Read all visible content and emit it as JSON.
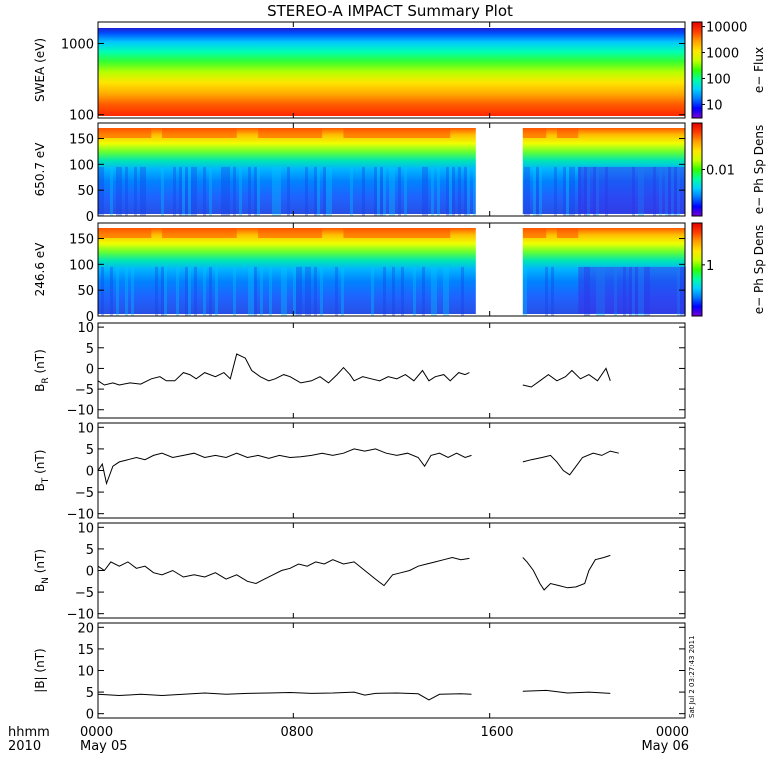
{
  "title": "STEREO-A IMPACT Summary Plot",
  "stamp": "Sat Jul  2 03:27:43 2011",
  "time_axis": {
    "corner_top": "hhmm",
    "corner_bottom": "2010",
    "ticks": [
      {
        "label": "0000",
        "sub": "May 05",
        "hour": 0
      },
      {
        "label": "0800",
        "sub": "",
        "hour": 8
      },
      {
        "label": "1600",
        "sub": "",
        "hour": 16
      },
      {
        "label": "0000",
        "sub": "May 06",
        "hour": 24
      }
    ]
  },
  "colorbar_colors": [
    "#7a00d4",
    "#0000ff",
    "#0078ff",
    "#00d2ff",
    "#00ffa0",
    "#32ff00",
    "#c8ff00",
    "#ffe600",
    "#ffa000",
    "#ff3c00",
    "#e60000"
  ],
  "chart_data": [
    {
      "type": "heatmap",
      "ylabel": "SWEA (eV)",
      "yscale": "log",
      "ylim": [
        90,
        2000
      ],
      "yticks": [
        {
          "label": "1000",
          "v": 1000
        },
        {
          "label": "100",
          "v": 100
        }
      ],
      "colorbar_label": "e− Flux",
      "colorbar_scale": "log",
      "colorbar_ticks": [
        {
          "label": "10000",
          "v": 10000
        },
        {
          "label": "1000",
          "v": 1000
        },
        {
          "label": "100",
          "v": 100
        },
        {
          "label": "10",
          "v": 10
        }
      ],
      "colorbar_range": [
        3,
        15000
      ],
      "gap_hours": [],
      "bands_log_energy": [
        3.3,
        3.05,
        2.75,
        2.45,
        2.15,
        1.95
      ]
    },
    {
      "type": "heatmap",
      "ylabel": "650.7 eV",
      "ylim": [
        0,
        180
      ],
      "yticks": [
        {
          "label": "150",
          "v": 150
        },
        {
          "label": "100",
          "v": 100
        },
        {
          "label": "50",
          "v": 50
        },
        {
          "label": "0",
          "v": 0
        }
      ],
      "colorbar_label": "e− Ph Sp Dens",
      "colorbar_ticks": [
        {
          "label": "0.01",
          "v": 0.5
        }
      ],
      "gap_hours": [
        17.7,
        19.9
      ]
    },
    {
      "type": "heatmap",
      "ylabel": "246.6 eV",
      "ylim": [
        0,
        180
      ],
      "yticks": [
        {
          "label": "150",
          "v": 150
        },
        {
          "label": "100",
          "v": 100
        },
        {
          "label": "50",
          "v": 50
        },
        {
          "label": "0",
          "v": 0
        }
      ],
      "colorbar_label": "e− Ph Sp Dens",
      "colorbar_ticks": [
        {
          "label": "1",
          "v": 0.55
        }
      ],
      "gap_hours": [
        17.7,
        19.9
      ]
    },
    {
      "type": "line",
      "ylabel": "B",
      "ylabel_sub": "R",
      "ylabel_unit": " (nT)",
      "ylim": [
        -12,
        11
      ],
      "yticks": [
        {
          "label": "10",
          "v": 10
        },
        {
          "label": "5",
          "v": 5
        },
        {
          "label": "0",
          "v": 0
        },
        {
          "label": "−5",
          "v": -5
        },
        {
          "label": "−10",
          "v": -10
        }
      ],
      "segments": [
        [
          [
            0,
            -3
          ],
          [
            0.3,
            -4
          ],
          [
            0.7,
            -3.5
          ],
          [
            1.0,
            -4
          ],
          [
            1.5,
            -3.5
          ],
          [
            2.0,
            -3.8
          ],
          [
            2.5,
            -2.5
          ],
          [
            2.9,
            -2
          ],
          [
            3.2,
            -3
          ],
          [
            3.6,
            -3
          ],
          [
            4.0,
            -1
          ],
          [
            4.3,
            -1.5
          ],
          [
            4.6,
            -2.5
          ],
          [
            5.0,
            -1
          ],
          [
            5.5,
            -2
          ],
          [
            5.9,
            -1
          ],
          [
            6.2,
            -2.5
          ],
          [
            6.5,
            3.5
          ],
          [
            6.9,
            2.5
          ],
          [
            7.2,
            -0.5
          ],
          [
            7.6,
            -2
          ],
          [
            8.0,
            -3
          ],
          [
            8.3,
            -2.5
          ],
          [
            8.7,
            -1.5
          ],
          [
            9.0,
            -2
          ],
          [
            9.5,
            -3.5
          ],
          [
            10.0,
            -3
          ],
          [
            10.4,
            -2
          ],
          [
            10.8,
            -3.5
          ],
          [
            11.2,
            -1.5
          ],
          [
            11.5,
            0.2
          ],
          [
            11.8,
            -1.5
          ],
          [
            12.0,
            -3
          ],
          [
            12.4,
            -2
          ],
          [
            12.8,
            -2.5
          ],
          [
            13.2,
            -3
          ],
          [
            13.6,
            -2
          ],
          [
            14.0,
            -2.5
          ],
          [
            14.4,
            -1.5
          ],
          [
            14.8,
            -3
          ],
          [
            15.2,
            -0.5
          ],
          [
            15.5,
            -3
          ],
          [
            15.8,
            -2
          ],
          [
            16.2,
            -1.5
          ],
          [
            16.5,
            -3
          ],
          [
            16.9,
            -1
          ],
          [
            17.2,
            -1.5
          ],
          [
            17.4,
            -1
          ]
        ],
        [
          [
            19.9,
            -4
          ],
          [
            20.3,
            -4.5
          ],
          [
            20.7,
            -3
          ],
          [
            21.1,
            -1.5
          ],
          [
            21.5,
            -3
          ],
          [
            21.9,
            -2
          ],
          [
            22.2,
            -0.5
          ],
          [
            22.6,
            -2.5
          ],
          [
            23.0,
            -1.5
          ],
          [
            23.4,
            -3
          ],
          [
            23.8,
            0
          ],
          [
            24.0,
            -3
          ]
        ],
        [
          [
            19.9,
            -4
          ],
          [
            20.3,
            -4.5
          ],
          [
            20.7,
            -3
          ],
          [
            21.1,
            -1.5
          ],
          [
            21.5,
            -2
          ],
          [
            21.9,
            -2.5
          ],
          [
            22.4,
            0.5
          ],
          [
            22.8,
            0
          ],
          [
            23.2,
            -0.5
          ],
          [
            23.5,
            -0.8
          ],
          [
            23.8,
            0.3
          ],
          [
            24.2,
            -1.5
          ],
          [
            24.6,
            0
          ],
          [
            25.0,
            0.8
          ],
          [
            25.3,
            -1
          ],
          [
            25.6,
            0.3
          ],
          [
            26.0,
            -1
          ],
          [
            26.4,
            -1.2
          ],
          [
            26.7,
            -2
          ],
          [
            27.0,
            -3
          ]
        ]
      ]
    },
    {
      "type": "line",
      "ylabel": "B",
      "ylabel_sub": "T",
      "ylabel_unit": " (nT)",
      "ylim": [
        -11,
        11
      ],
      "yticks": [
        {
          "label": "10",
          "v": 10
        },
        {
          "label": "5",
          "v": 5
        },
        {
          "label": "0",
          "v": 0
        },
        {
          "label": "−5",
          "v": -5
        },
        {
          "label": "−10",
          "v": -10
        }
      ],
      "segments": [
        [
          [
            0,
            0
          ],
          [
            0.2,
            1.5
          ],
          [
            0.4,
            -3
          ],
          [
            0.7,
            1
          ],
          [
            1.0,
            2
          ],
          [
            1.4,
            2.5
          ],
          [
            1.8,
            3
          ],
          [
            2.2,
            2.5
          ],
          [
            2.6,
            3.5
          ],
          [
            3.0,
            4
          ],
          [
            3.5,
            3
          ],
          [
            4.0,
            3.5
          ],
          [
            4.5,
            4
          ],
          [
            5.0,
            3
          ],
          [
            5.5,
            3.5
          ],
          [
            6.0,
            3
          ],
          [
            6.5,
            4
          ],
          [
            7.0,
            3
          ],
          [
            7.5,
            3.5
          ],
          [
            8.0,
            2.8
          ],
          [
            8.5,
            3.5
          ],
          [
            9.0,
            3
          ],
          [
            9.5,
            3.2
          ],
          [
            10.0,
            3.5
          ],
          [
            10.5,
            4
          ],
          [
            11.0,
            3.5
          ],
          [
            11.5,
            4
          ],
          [
            12.0,
            5
          ],
          [
            12.5,
            4.5
          ],
          [
            13.0,
            5
          ],
          [
            13.5,
            4
          ],
          [
            14.0,
            3.5
          ],
          [
            14.5,
            4
          ],
          [
            15.0,
            3
          ],
          [
            15.3,
            1
          ],
          [
            15.6,
            3.5
          ],
          [
            16.0,
            4
          ],
          [
            16.4,
            3
          ],
          [
            16.8,
            4
          ],
          [
            17.2,
            3
          ],
          [
            17.5,
            3.5
          ]
        ],
        [
          [
            19.9,
            2
          ],
          [
            20.3,
            2.5
          ],
          [
            20.8,
            3
          ],
          [
            21.2,
            3.5
          ],
          [
            21.5,
            2
          ],
          [
            21.8,
            0
          ],
          [
            22.1,
            -1
          ],
          [
            22.4,
            1
          ],
          [
            22.7,
            3
          ],
          [
            23.2,
            4
          ],
          [
            23.6,
            3.5
          ],
          [
            24.0,
            4.5
          ],
          [
            24.4,
            4
          ]
        ]
      ]
    },
    {
      "type": "line",
      "ylabel": "B",
      "ylabel_sub": "N",
      "ylabel_unit": " (nT)",
      "ylim": [
        -11,
        11
      ],
      "yticks": [
        {
          "label": "10",
          "v": 10
        },
        {
          "label": "5",
          "v": 5
        },
        {
          "label": "0",
          "v": 0
        },
        {
          "label": "−5",
          "v": -5
        },
        {
          "label": "−10",
          "v": -10
        }
      ],
      "segments": [
        [
          [
            0,
            1
          ],
          [
            0.3,
            0
          ],
          [
            0.6,
            2
          ],
          [
            1.0,
            1
          ],
          [
            1.4,
            2
          ],
          [
            1.8,
            0.5
          ],
          [
            2.2,
            1
          ],
          [
            2.6,
            -0.5
          ],
          [
            3.0,
            -1
          ],
          [
            3.5,
            0
          ],
          [
            4.0,
            -1.5
          ],
          [
            4.5,
            -1
          ],
          [
            5.0,
            -1.5
          ],
          [
            5.5,
            -0.5
          ],
          [
            6.0,
            -2
          ],
          [
            6.5,
            -1
          ],
          [
            7.0,
            -2.5
          ],
          [
            7.4,
            -3
          ],
          [
            7.8,
            -2
          ],
          [
            8.2,
            -1
          ],
          [
            8.6,
            0
          ],
          [
            9.0,
            0.5
          ],
          [
            9.4,
            1.5
          ],
          [
            9.8,
            1
          ],
          [
            10.2,
            2
          ],
          [
            10.6,
            1.5
          ],
          [
            11.0,
            2.5
          ],
          [
            11.5,
            1.5
          ],
          [
            12.0,
            2
          ],
          [
            12.5,
            0
          ],
          [
            13.0,
            -2
          ],
          [
            13.4,
            -3.5
          ],
          [
            13.8,
            -1
          ],
          [
            14.2,
            -0.5
          ],
          [
            14.6,
            0
          ],
          [
            15.0,
            1
          ],
          [
            15.4,
            1.5
          ],
          [
            15.8,
            2
          ],
          [
            16.2,
            2.5
          ],
          [
            16.6,
            3
          ],
          [
            17.0,
            2.5
          ],
          [
            17.4,
            2.8
          ]
        ],
        [
          [
            19.9,
            3
          ],
          [
            20.1,
            2
          ],
          [
            20.4,
            0
          ],
          [
            20.7,
            -3
          ],
          [
            20.9,
            -4.5
          ],
          [
            21.2,
            -3
          ],
          [
            21.6,
            -3.5
          ],
          [
            22.0,
            -4
          ],
          [
            22.4,
            -3.8
          ],
          [
            22.8,
            -3
          ],
          [
            23.0,
            0
          ],
          [
            23.3,
            2.5
          ],
          [
            23.7,
            3
          ],
          [
            24.0,
            3.5
          ]
        ]
      ]
    },
    {
      "type": "line",
      "ylabel": "|B|",
      "ylabel_sub": "",
      "ylabel_unit": " (nT)",
      "ylim": [
        -1,
        21
      ],
      "yticks": [
        {
          "label": "20",
          "v": 20
        },
        {
          "label": "15",
          "v": 15
        },
        {
          "label": "10",
          "v": 10
        },
        {
          "label": "5",
          "v": 5
        },
        {
          "label": "0",
          "v": 0
        }
      ],
      "segments": [
        [
          [
            0,
            4.5
          ],
          [
            1.0,
            4.2
          ],
          [
            2.0,
            4.5
          ],
          [
            3.0,
            4.2
          ],
          [
            4.0,
            4.5
          ],
          [
            5.0,
            4.8
          ],
          [
            6.0,
            4.5
          ],
          [
            7.0,
            4.7
          ],
          [
            8.0,
            4.8
          ],
          [
            9.0,
            4.9
          ],
          [
            10.0,
            4.7
          ],
          [
            11.0,
            4.8
          ],
          [
            12.0,
            5.0
          ],
          [
            12.5,
            4.3
          ],
          [
            13.0,
            4.7
          ],
          [
            14.0,
            4.8
          ],
          [
            15.0,
            4.6
          ],
          [
            15.5,
            3.2
          ],
          [
            16.0,
            4.5
          ],
          [
            17.0,
            4.6
          ],
          [
            17.5,
            4.5
          ]
        ],
        [
          [
            19.9,
            5.2
          ],
          [
            21.0,
            5.4
          ],
          [
            22.0,
            4.8
          ],
          [
            23.0,
            5.0
          ],
          [
            24.0,
            4.7
          ]
        ]
      ]
    }
  ]
}
